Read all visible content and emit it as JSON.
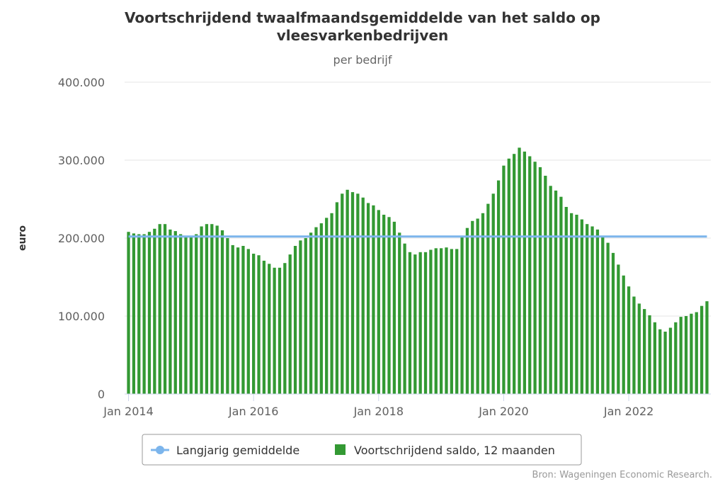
{
  "chart_data": {
    "type": "bar",
    "title_line1": "Voortschrijdend twaalfmaandsgemiddelde van het saldo op",
    "title_line2": "vleesvarkenbedrijven",
    "subtitle": "per bedrijf",
    "ylabel": "euro",
    "ylim": [
      0,
      400000
    ],
    "yticks": [
      {
        "value": 0,
        "label": "0"
      },
      {
        "value": 100000,
        "label": "100.000"
      },
      {
        "value": 200000,
        "label": "200.000"
      },
      {
        "value": 300000,
        "label": "300.000"
      },
      {
        "value": 400000,
        "label": "400.000"
      }
    ],
    "xstart": "2014-01",
    "xticks": [
      {
        "month_index": 0,
        "label": "Jan 2014"
      },
      {
        "month_index": 24,
        "label": "Jan 2016"
      },
      {
        "month_index": 48,
        "label": "Jan 2018"
      },
      {
        "month_index": 72,
        "label": "Jan 2020"
      },
      {
        "month_index": 96,
        "label": "Jan 2022"
      }
    ],
    "colors": {
      "bars": "#339933",
      "line": "#7cb5ec"
    },
    "series": [
      {
        "name": "Voortschrijdend saldo, 12 maanden",
        "kind": "bar",
        "values": [
          208000,
          206000,
          205000,
          205000,
          208000,
          212000,
          218000,
          218000,
          211000,
          209000,
          205000,
          203000,
          201000,
          205000,
          215000,
          218000,
          218000,
          216000,
          210000,
          200000,
          191000,
          188000,
          190000,
          186000,
          180000,
          178000,
          171000,
          167000,
          162000,
          162000,
          168000,
          179000,
          190000,
          197000,
          200000,
          207000,
          214000,
          219000,
          226000,
          232000,
          246000,
          257000,
          262000,
          259000,
          257000,
          252000,
          245000,
          242000,
          236000,
          230000,
          227000,
          221000,
          207000,
          193000,
          182000,
          179000,
          182000,
          182000,
          185000,
          187000,
          187000,
          188000,
          186000,
          186000,
          201000,
          213000,
          222000,
          225000,
          232000,
          244000,
          257000,
          274000,
          293000,
          302000,
          308000,
          316000,
          311000,
          305000,
          298000,
          291000,
          280000,
          267000,
          261000,
          253000,
          240000,
          232000,
          230000,
          224000,
          218000,
          215000,
          211000,
          202000,
          194000,
          181000,
          166000,
          152000,
          138000,
          125000,
          116000,
          109000,
          101000,
          92000,
          83000,
          80000,
          85000,
          92000,
          99000,
          100000,
          103000,
          105000,
          113000,
          119000
        ]
      },
      {
        "name": "Langjarig gemiddelde",
        "kind": "line",
        "values": [
          202000
        ]
      }
    ],
    "legend": {
      "position": "bottom-center"
    }
  },
  "credits": "Bron: Wageningen Economic Research."
}
